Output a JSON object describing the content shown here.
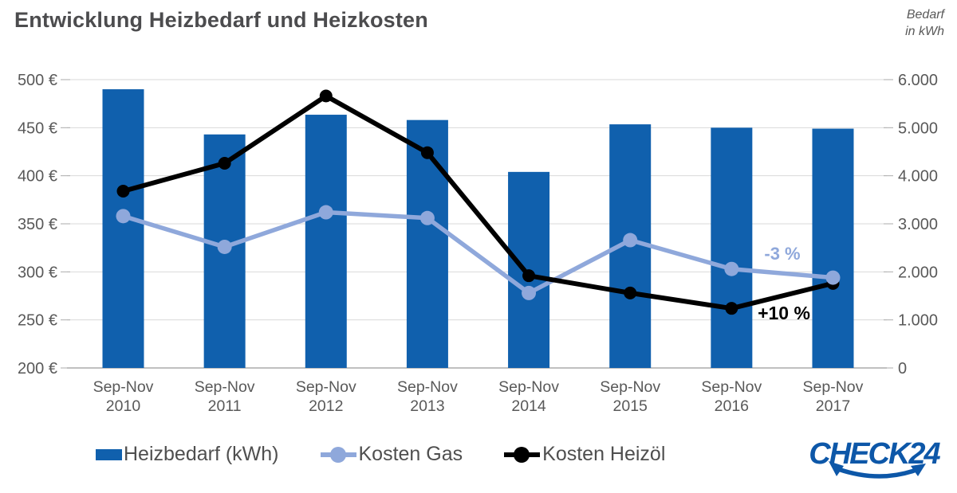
{
  "header": {
    "title": "Entwicklung Heizbedarf und Heizkosten",
    "right_axis_note": "Bedarf\nin kWh"
  },
  "chart_data": {
    "type": "bar",
    "subtype": "combo-bar-line-dual-axis",
    "categories": [
      {
        "line1": "Sep-Nov",
        "line2": "2010"
      },
      {
        "line1": "Sep-Nov",
        "line2": "2011"
      },
      {
        "line1": "Sep-Nov",
        "line2": "2012"
      },
      {
        "line1": "Sep-Nov",
        "line2": "2013"
      },
      {
        "line1": "Sep-Nov",
        "line2": "2014"
      },
      {
        "line1": "Sep-Nov",
        "line2": "2015"
      },
      {
        "line1": "Sep-Nov",
        "line2": "2016"
      },
      {
        "line1": "Sep-Nov",
        "line2": "2017"
      }
    ],
    "left_axis": {
      "unit": "€",
      "min": 200,
      "max": 500,
      "tick_labels": [
        "500 €",
        "450 €",
        "400 €",
        "350 €",
        "300 €",
        "250 €",
        "200 €"
      ]
    },
    "right_axis": {
      "title": "Bedarf in kWh",
      "unit": "kWh",
      "min": 0,
      "max": 6000,
      "tick_labels": [
        "6.000",
        "5.000",
        "4.000",
        "3.000",
        "2.000",
        "1.000",
        "0"
      ]
    },
    "series": [
      {
        "name": "Heizbedarf (kWh)",
        "type": "bar",
        "axis": "right",
        "color": "#1060AD",
        "values": [
          5800,
          4860,
          5270,
          5160,
          4080,
          5070,
          5000,
          4980
        ]
      },
      {
        "name": "Kosten Gas",
        "type": "line",
        "axis": "left",
        "color": "#8FA8DB",
        "values": [
          358,
          326,
          362,
          356,
          278,
          333,
          303,
          294
        ]
      },
      {
        "name": "Kosten Heizöl",
        "type": "line",
        "axis": "left",
        "color": "#000000",
        "values": [
          384,
          413,
          483,
          424,
          296,
          278,
          262,
          288
        ]
      }
    ],
    "annotations": [
      {
        "text": "-3 %",
        "series": "Kosten Gas",
        "color": "#8FA8DB",
        "x": 981,
        "y": 326,
        "size": 22
      },
      {
        "text": "+10 %",
        "series": "Kosten Heizöl",
        "color": "#000000",
        "x": 983,
        "y": 401,
        "size": 23
      }
    ],
    "grid": true,
    "legend_position": "bottom"
  },
  "colors": {
    "grid": "#D9D9D9",
    "axis": "#ABABAB",
    "tick_text": "#595959",
    "title_text": "#4c4c4e"
  },
  "logo": {
    "text": "CHECK24",
    "color": "#0D57A8"
  }
}
